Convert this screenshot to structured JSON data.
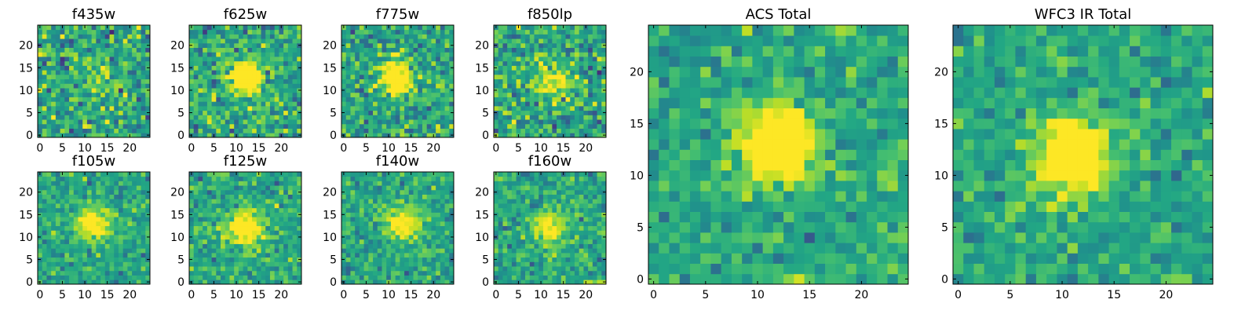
{
  "figure": {
    "description_colormap": "viridis"
  },
  "chart_data": [
    {
      "type": "heatmap",
      "title": "f435w",
      "grid_size": 25,
      "xlim": [
        0,
        24
      ],
      "ylim": [
        0,
        24
      ],
      "xticks": [
        0,
        5,
        10,
        15,
        20
      ],
      "yticks": [
        0,
        5,
        10,
        15,
        20
      ],
      "source_peak": [
        13,
        13
      ],
      "source_strength": 0.18,
      "noise": 0.9,
      "seed": 11
    },
    {
      "type": "heatmap",
      "title": "f625w",
      "grid_size": 25,
      "xlim": [
        0,
        24
      ],
      "ylim": [
        0,
        24
      ],
      "xticks": [
        0,
        5,
        10,
        15,
        20
      ],
      "yticks": [
        0,
        5,
        10,
        15,
        20
      ],
      "source_peak": [
        12,
        13
      ],
      "source_strength": 0.55,
      "noise": 0.8,
      "seed": 23
    },
    {
      "type": "heatmap",
      "title": "f775w",
      "grid_size": 25,
      "xlim": [
        0,
        24
      ],
      "ylim": [
        0,
        24
      ],
      "xticks": [
        0,
        5,
        10,
        15,
        20
      ],
      "yticks": [
        0,
        5,
        10,
        15,
        20
      ],
      "source_peak": [
        12,
        13
      ],
      "source_strength": 0.5,
      "noise": 0.8,
      "seed": 37
    },
    {
      "type": "heatmap",
      "title": "f850lp",
      "grid_size": 25,
      "xlim": [
        0,
        24
      ],
      "ylim": [
        0,
        24
      ],
      "xticks": [
        0,
        5,
        10,
        15,
        20
      ],
      "yticks": [
        0,
        5,
        10,
        15,
        20
      ],
      "source_peak": [
        13,
        12
      ],
      "source_strength": 0.35,
      "noise": 0.9,
      "seed": 41
    },
    {
      "type": "heatmap",
      "title": "f105w",
      "grid_size": 25,
      "xlim": [
        0,
        24
      ],
      "ylim": [
        0,
        24
      ],
      "xticks": [
        0,
        5,
        10,
        15,
        20
      ],
      "yticks": [
        0,
        5,
        10,
        15,
        20
      ],
      "source_peak": [
        12,
        13
      ],
      "source_strength": 0.4,
      "noise": 0.6,
      "seed": 53
    },
    {
      "type": "heatmap",
      "title": "f125w",
      "grid_size": 25,
      "xlim": [
        0,
        24
      ],
      "ylim": [
        0,
        24
      ],
      "xticks": [
        0,
        5,
        10,
        15,
        20
      ],
      "yticks": [
        0,
        5,
        10,
        15,
        20
      ],
      "source_peak": [
        12,
        12
      ],
      "source_strength": 0.45,
      "noise": 0.6,
      "seed": 67
    },
    {
      "type": "heatmap",
      "title": "f140w",
      "grid_size": 25,
      "xlim": [
        0,
        24
      ],
      "ylim": [
        0,
        24
      ],
      "xticks": [
        0,
        5,
        10,
        15,
        20
      ],
      "yticks": [
        0,
        5,
        10,
        15,
        20
      ],
      "source_peak": [
        13,
        13
      ],
      "source_strength": 0.4,
      "noise": 0.6,
      "seed": 79
    },
    {
      "type": "heatmap",
      "title": "f160w",
      "grid_size": 25,
      "xlim": [
        0,
        24
      ],
      "ylim": [
        0,
        24
      ],
      "xticks": [
        0,
        5,
        10,
        15,
        20
      ],
      "yticks": [
        0,
        5,
        10,
        15,
        20
      ],
      "source_peak": [
        12,
        12
      ],
      "source_strength": 0.35,
      "noise": 0.65,
      "seed": 83
    },
    {
      "type": "heatmap",
      "title": "ACS Total",
      "grid_size": 25,
      "xlim": [
        0,
        24
      ],
      "ylim": [
        0,
        24
      ],
      "xticks": [
        0,
        5,
        10,
        15,
        20
      ],
      "yticks": [
        0,
        5,
        10,
        15,
        20
      ],
      "source_peak": [
        12,
        13
      ],
      "source_strength": 0.6,
      "noise": 0.6,
      "seed": 97
    },
    {
      "type": "heatmap",
      "title": "WFC3 IR Total",
      "grid_size": 25,
      "xlim": [
        0,
        24
      ],
      "ylim": [
        0,
        24
      ],
      "xticks": [
        0,
        5,
        10,
        15,
        20
      ],
      "yticks": [
        0,
        5,
        10,
        15,
        20
      ],
      "source_peak": [
        11,
        12
      ],
      "source_strength": 0.55,
      "noise": 0.55,
      "seed": 101
    }
  ]
}
